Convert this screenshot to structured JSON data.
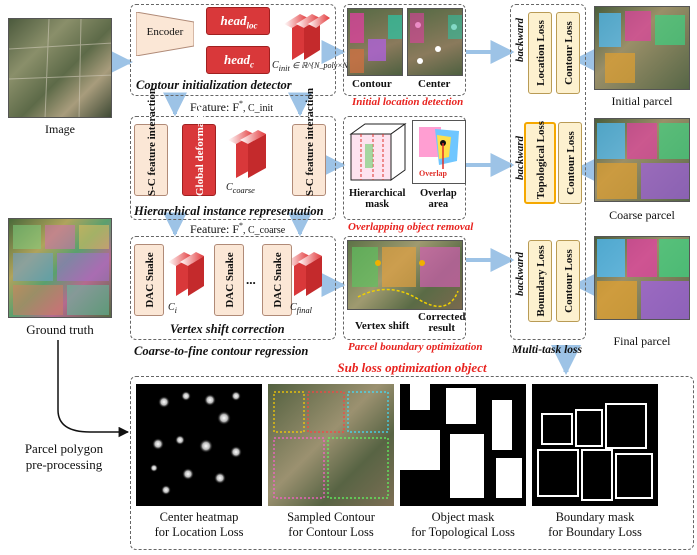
{
  "left": {
    "image_label": "Image",
    "gt_label": "Ground truth",
    "preproc_line1": "Parcel polygon",
    "preproc_line2": "pre-processing"
  },
  "stage1": {
    "encoder": "Encoder",
    "head_loc": "head",
    "head_loc_sub": "loc",
    "head_c": "head",
    "head_c_sub": "c",
    "c_init": "C",
    "c_init_sub": "init",
    "c_init_dim": "∈ ℝ^{N_poly×N×2}",
    "title": "Contour initialization detector"
  },
  "feature1": {
    "text": "Feature: F",
    "rest": ", C_init"
  },
  "stage2": {
    "sc1": "S-C feature interaction",
    "global": "Global deformation",
    "sc2": "S-C feature interaction",
    "c_coarse": "C",
    "c_coarse_sub": "coarse",
    "title": "Hierarchical instance representation"
  },
  "feature2": {
    "text": "Feature: F",
    "rest": ", C_coarse"
  },
  "stage3": {
    "dac1": "DAC Snake",
    "dac2": "DAC Snake",
    "dac3": "DAC Snake",
    "ellipsis": "...",
    "c_i": "C",
    "c_i_sub": "i",
    "c_final": "C",
    "c_final_sub": "final",
    "title": "Vertex shift correction"
  },
  "coarse_to_fine": "Coarse-to-fine contour regression",
  "middle": {
    "contour": "Contour",
    "center": "Center",
    "initial_detection": "Initial location detection",
    "hier_mask_1": "Hierarchical",
    "hier_mask_2": "mask",
    "overlap_area_1": "Overlap",
    "overlap_area_2": "area",
    "overlap_tag": "Overlap",
    "overlap_removal": "Overlapping object removal",
    "vertex_shift": "Vertex shift",
    "corrected_1": "Corrected",
    "corrected_2": "result",
    "boundary_opt": "Parcel boundary optimization"
  },
  "losses": {
    "backward": "backward",
    "location": "Location Loss",
    "contour": "Contour Loss",
    "topological": "Topological Loss",
    "boundary": "Boundary Loss",
    "multitask": "Multi-task loss"
  },
  "right": {
    "initial": "Initial parcel",
    "coarse": "Coarse parcel",
    "final": "Final parcel"
  },
  "bottom": {
    "title": "Sub loss optimization object",
    "cap1_1": "Center heatmap",
    "cap1_2": "for Location Loss",
    "cap2_1": "Sampled Contour",
    "cap2_2": "for Contour Loss",
    "cap3_1": "Object mask",
    "cap3_2": "for Topological Loss",
    "cap4_1": "Boundary mask",
    "cap4_2": "for Boundary Loss"
  },
  "colors": {
    "accent_red": "#e8231f",
    "box_pink": "#fbe7d6",
    "loss_yellow": "#fdf1cf",
    "arrow_blue": "#9dc3e6",
    "topo_border": "#f5a800"
  }
}
